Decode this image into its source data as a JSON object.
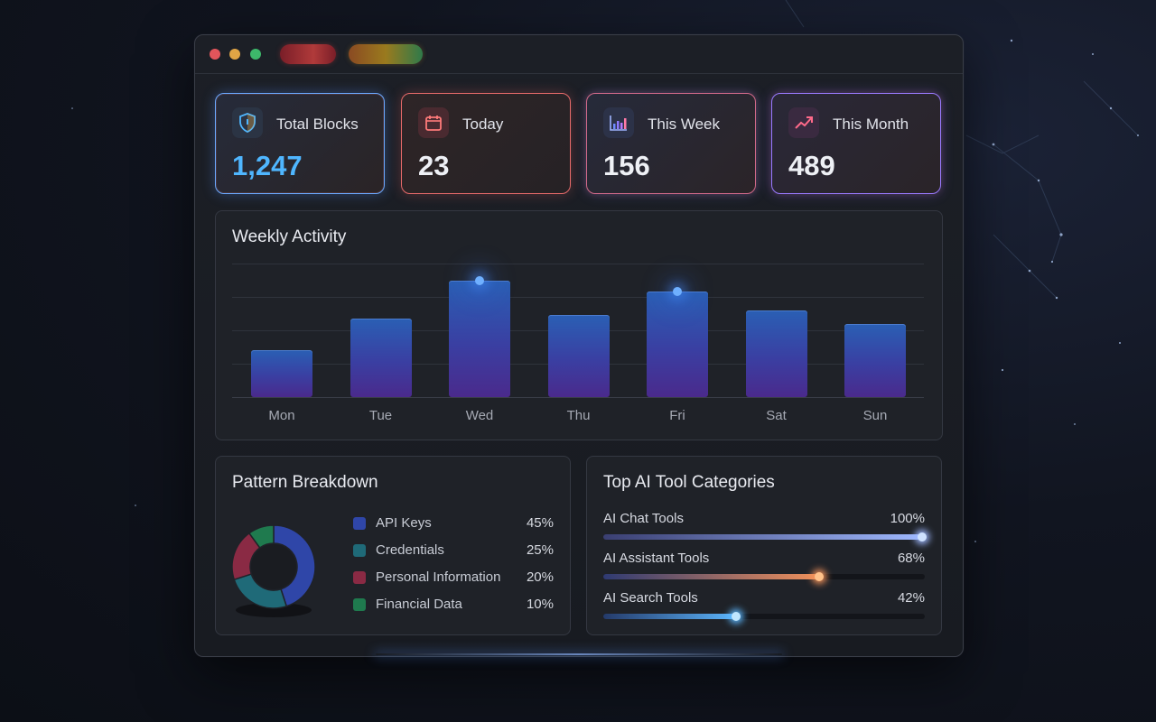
{
  "window": {
    "controls": [
      "close",
      "minimize",
      "maximize"
    ],
    "toolbar_pills": [
      "red-pill",
      "amber-green-pill"
    ]
  },
  "stats": [
    {
      "label": "Total Blocks",
      "value": "1,247",
      "icon": "shield-icon",
      "value_color": "#4fb6ff"
    },
    {
      "label": "Today",
      "value": "23",
      "icon": "calendar-icon",
      "value_color": "#eef0f5"
    },
    {
      "label": "This Week",
      "value": "156",
      "icon": "bar-chart-icon",
      "value_color": "#eef0f5"
    },
    {
      "label": "This Month",
      "value": "489",
      "icon": "trend-up-icon",
      "value_color": "#eef0f5"
    }
  ],
  "weekly": {
    "title": "Weekly Activity",
    "chart_data": {
      "type": "bar",
      "categories": [
        "Mon",
        "Tue",
        "Wed",
        "Thu",
        "Fri",
        "Sat",
        "Sun"
      ],
      "values": [
        28,
        47,
        70,
        49,
        63,
        52,
        44
      ],
      "ylim": [
        0,
        80
      ],
      "highlighted": [
        "Wed",
        "Fri"
      ],
      "grid": true
    }
  },
  "pattern": {
    "title": "Pattern Breakdown",
    "items": [
      {
        "name": "API Keys",
        "pct": "45%",
        "value": 45,
        "color": "#2f46a8"
      },
      {
        "name": "Credentials",
        "pct": "25%",
        "value": 25,
        "color": "#1f6a78"
      },
      {
        "name": "Personal Information",
        "pct": "20%",
        "value": 20,
        "color": "#8a2a44"
      },
      {
        "name": "Financial Data",
        "pct": "10%",
        "value": 10,
        "color": "#1f7a4e"
      }
    ]
  },
  "tools": {
    "title": "Top AI Tool Categories",
    "items": [
      {
        "name": "AI Chat Tools",
        "pct": "100%",
        "value": 100,
        "color_from": "#3a3f72",
        "color_to": "#9fb9ff",
        "knob": "#cfe2ff"
      },
      {
        "name": "AI Assistant Tools",
        "pct": "68%",
        "value": 68,
        "color_from": "#2e3a72",
        "color_to": "#f3925a",
        "knob": "#ffc28a"
      },
      {
        "name": "AI Search Tools",
        "pct": "42%",
        "value": 42,
        "color_from": "#243a6a",
        "color_to": "#5db8ff",
        "knob": "#bfe6ff"
      }
    ]
  }
}
